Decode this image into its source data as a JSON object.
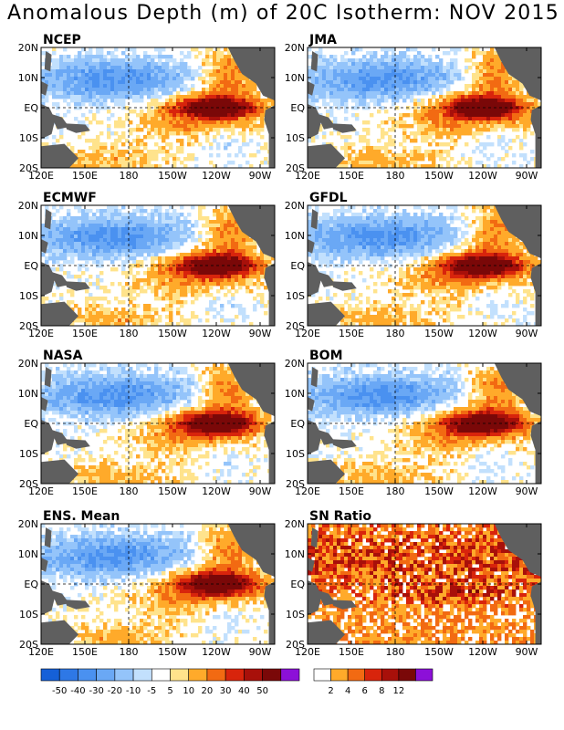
{
  "title": "Anomalous Depth (m) of 20C Isotherm: NOV 2015",
  "map": {
    "lon_ticks": [
      "120E",
      "150E",
      "180",
      "150W",
      "120W",
      "90W"
    ],
    "lat_ticks": [
      "20N",
      "10N",
      "EQ",
      "10S",
      "20S"
    ]
  },
  "chart_data": [
    {
      "type": "heatmap",
      "title": "NCEP"
    },
    {
      "type": "heatmap",
      "title": "JMA"
    },
    {
      "type": "heatmap",
      "title": "ECMWF"
    },
    {
      "type": "heatmap",
      "title": "GFDL"
    },
    {
      "type": "heatmap",
      "title": "NASA"
    },
    {
      "type": "heatmap",
      "title": "BOM"
    },
    {
      "type": "heatmap",
      "title": "ENS. Mean"
    },
    {
      "type": "heatmap",
      "title": "SN Ratio"
    }
  ],
  "colorbars": {
    "depth": {
      "labels": [
        "-50",
        "-40",
        "-30",
        "-20",
        "-10",
        "-5",
        "5",
        "10",
        "20",
        "30",
        "40",
        "50"
      ],
      "colors": [
        "#1560d8",
        "#2e78e6",
        "#4a91f0",
        "#6aa8f5",
        "#94c4fa",
        "#c2e0fd",
        "#ffffff",
        "#ffe38c",
        "#ffaa2a",
        "#f26a12",
        "#d8240c",
        "#a8100a",
        "#7a0808",
        "#8c10d8"
      ]
    },
    "sn": {
      "labels": [
        "2",
        "4",
        "6",
        "8",
        "12"
      ],
      "colors": [
        "#ffffff",
        "#ffaa2a",
        "#f26a12",
        "#d8240c",
        "#a8100a",
        "#7a0808",
        "#8c10d8"
      ]
    }
  },
  "land_color": "#5f5f5f"
}
